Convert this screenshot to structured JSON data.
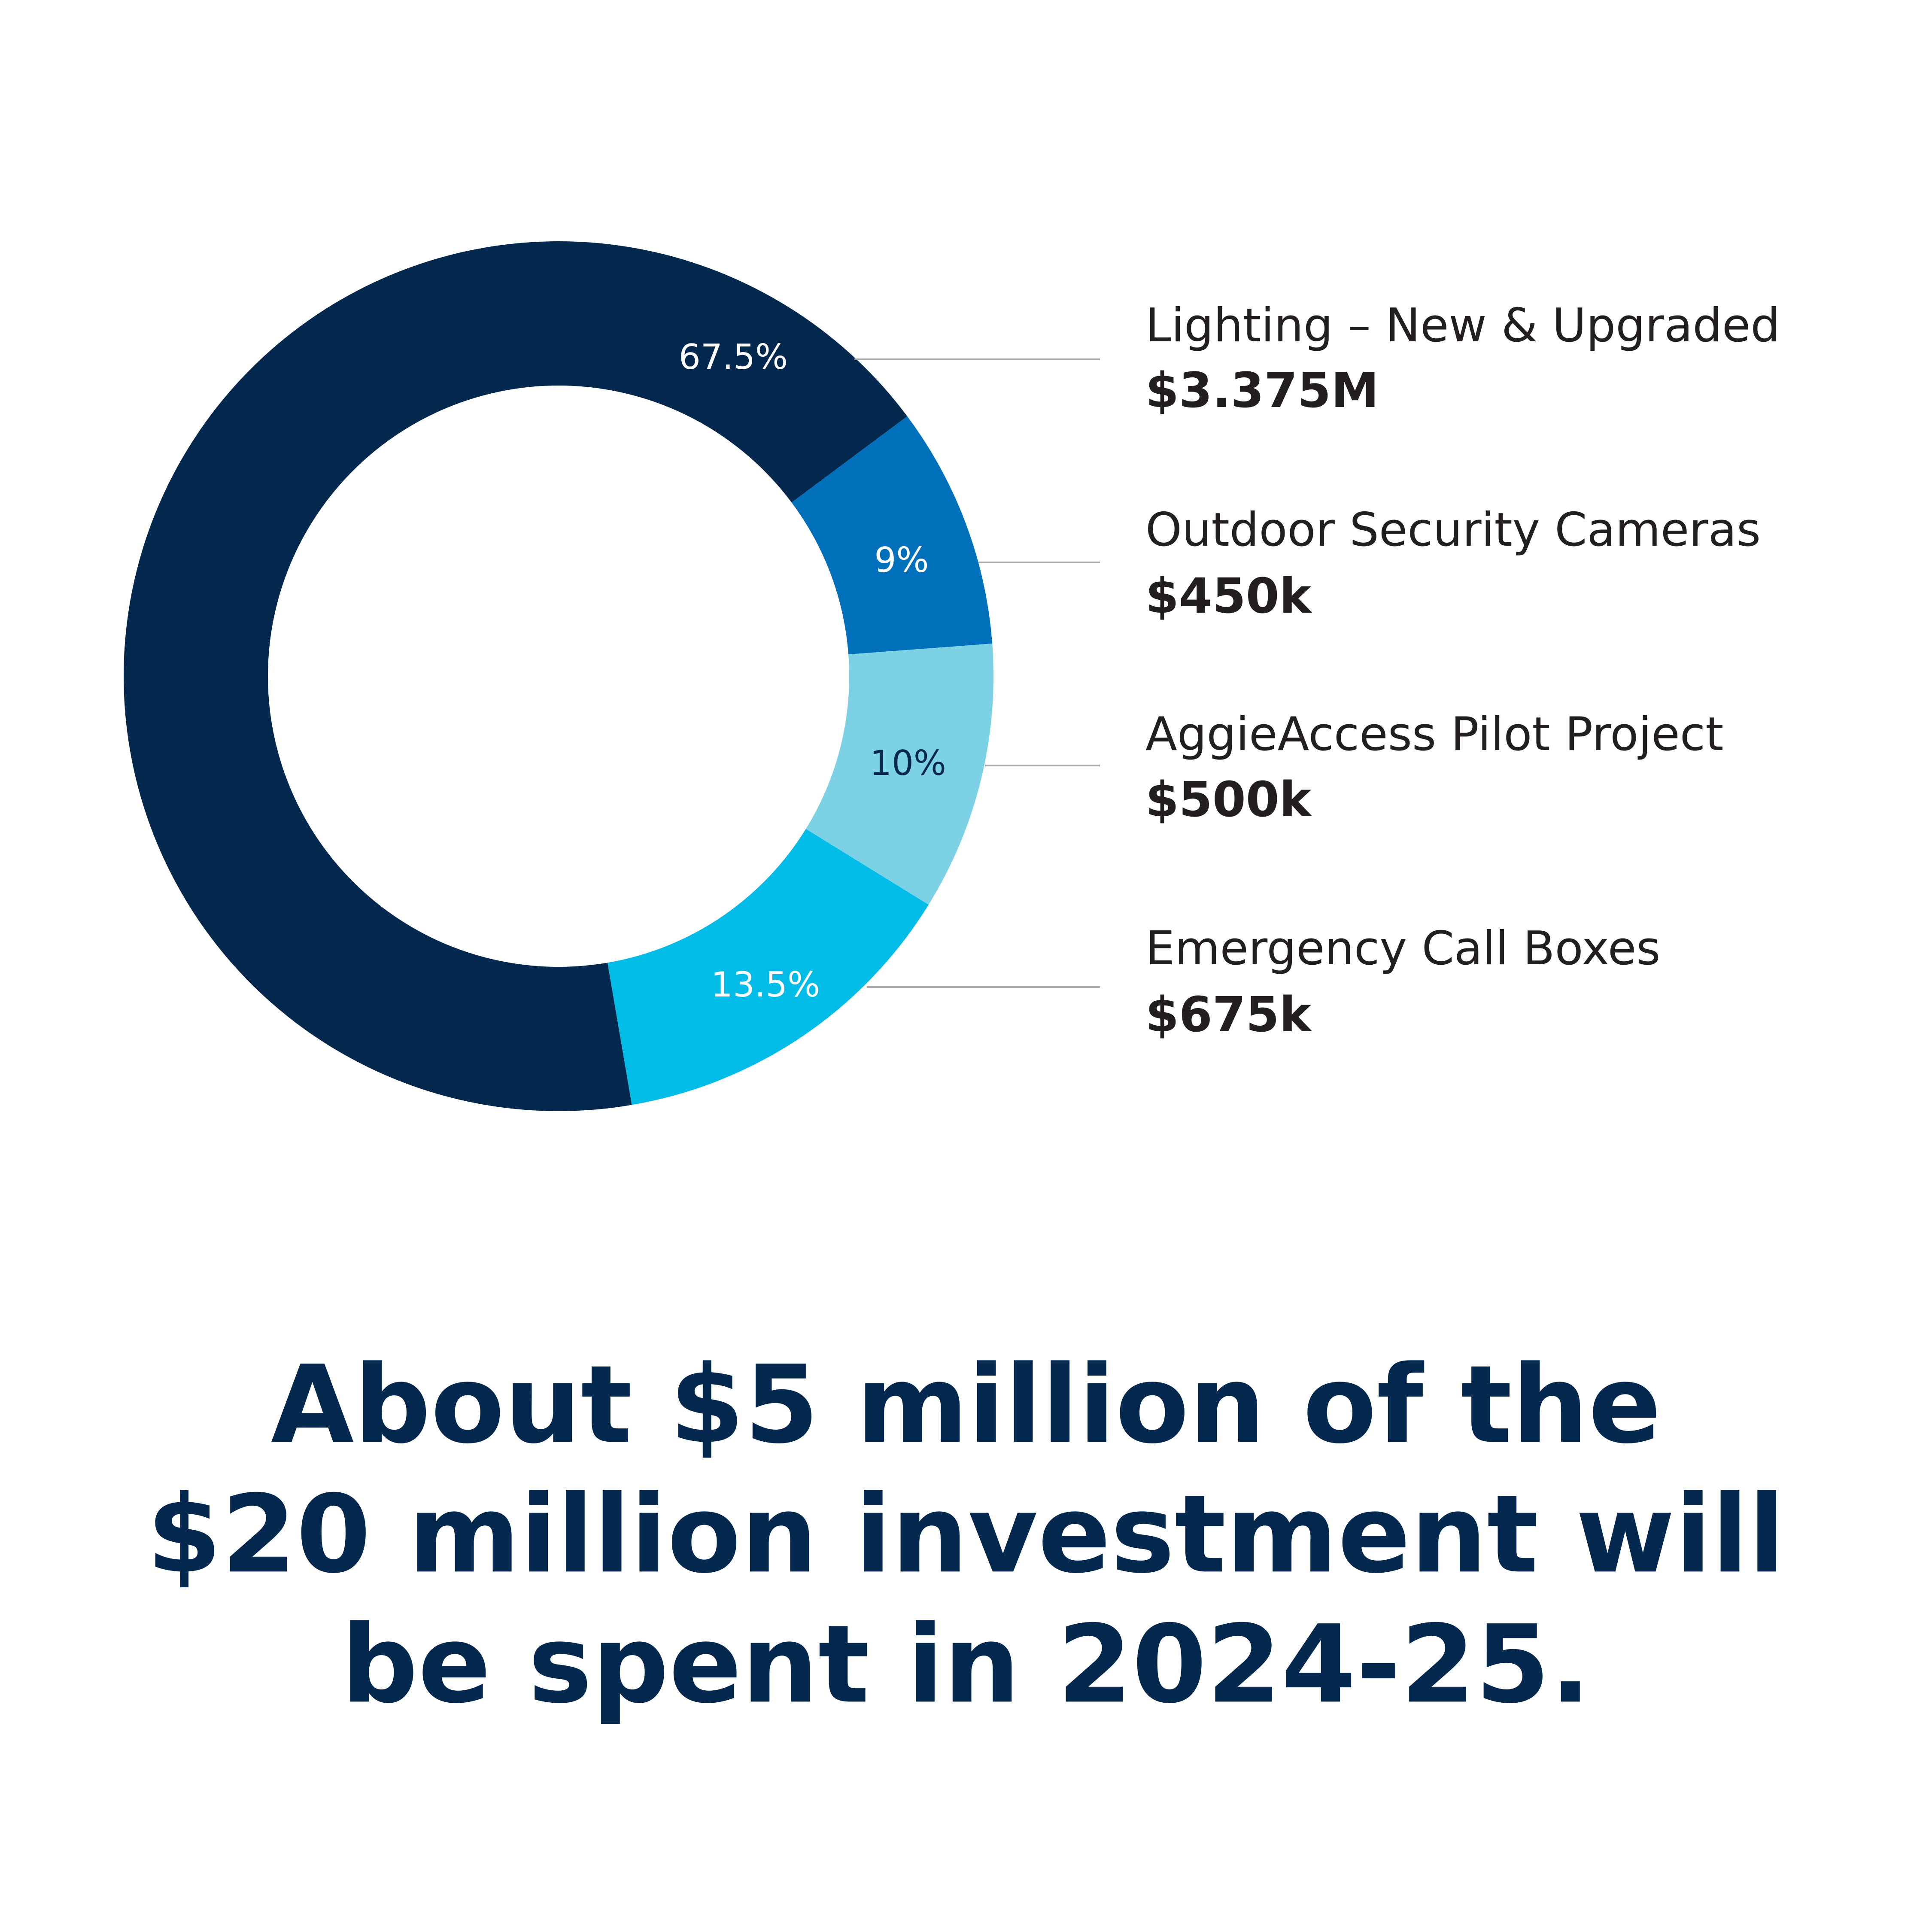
{
  "chart_data": {
    "type": "donut",
    "categories": [
      "Lighting – New & Upgraded",
      "Outdoor Security Cameras",
      "AggieAccess Pilot Project",
      "Emergency Call Boxes"
    ],
    "values": [
      67.5,
      9,
      10,
      13.5
    ],
    "value_labels": [
      "67.5%",
      "9%",
      "10%",
      "13.5%"
    ],
    "amount_labels": [
      "$3.375M",
      "$450k",
      "$500k",
      "$675k"
    ],
    "colors": [
      "#05284f",
      "#0070bb",
      "#7dd1e5",
      "#00bce7"
    ],
    "value_label_colors": [
      "#ffffff",
      "#ffffff",
      "#05284f",
      "#ffffff"
    ],
    "caption_lines": [
      "About $5 million of the",
      "$20 million investment will",
      "be spent in 2024-25."
    ]
  }
}
